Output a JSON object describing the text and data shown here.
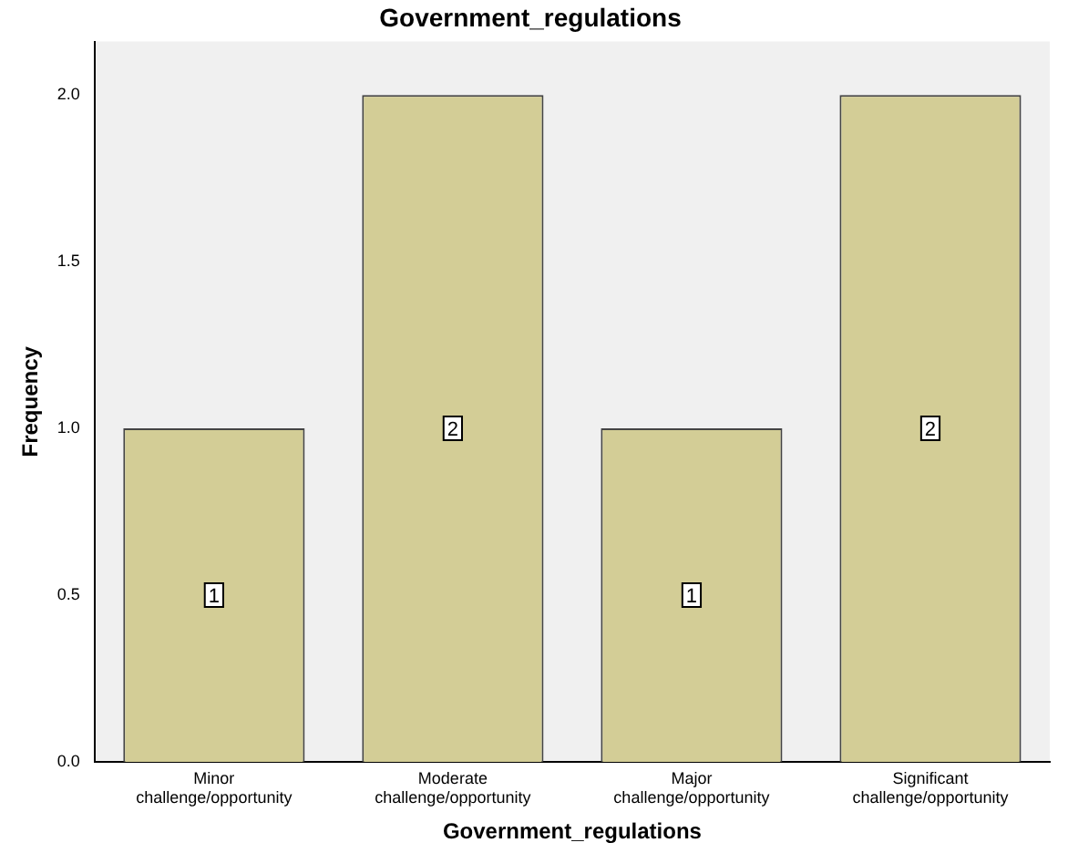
{
  "chart_data": {
    "type": "bar",
    "title": "Government_regulations",
    "xlabel": "Government_regulations",
    "ylabel": "Frequency",
    "categories": [
      "Minor challenge/opportunity",
      "Moderate challenge/opportunity",
      "Major challenge/opportunity",
      "Significant challenge/opportunity"
    ],
    "values": [
      1,
      2,
      1,
      2
    ],
    "color": "#d3cd96",
    "ylim": [
      0,
      2.16
    ],
    "yticks": [
      {
        "value": 0,
        "label": "0.0"
      },
      {
        "value": 0.5,
        "label": "0.5"
      },
      {
        "value": 1,
        "label": "1.0"
      },
      {
        "value": 1.5,
        "label": "1.5"
      },
      {
        "value": 2,
        "label": "2.0"
      }
    ],
    "grid": false,
    "legend": false,
    "data_labels": true
  }
}
